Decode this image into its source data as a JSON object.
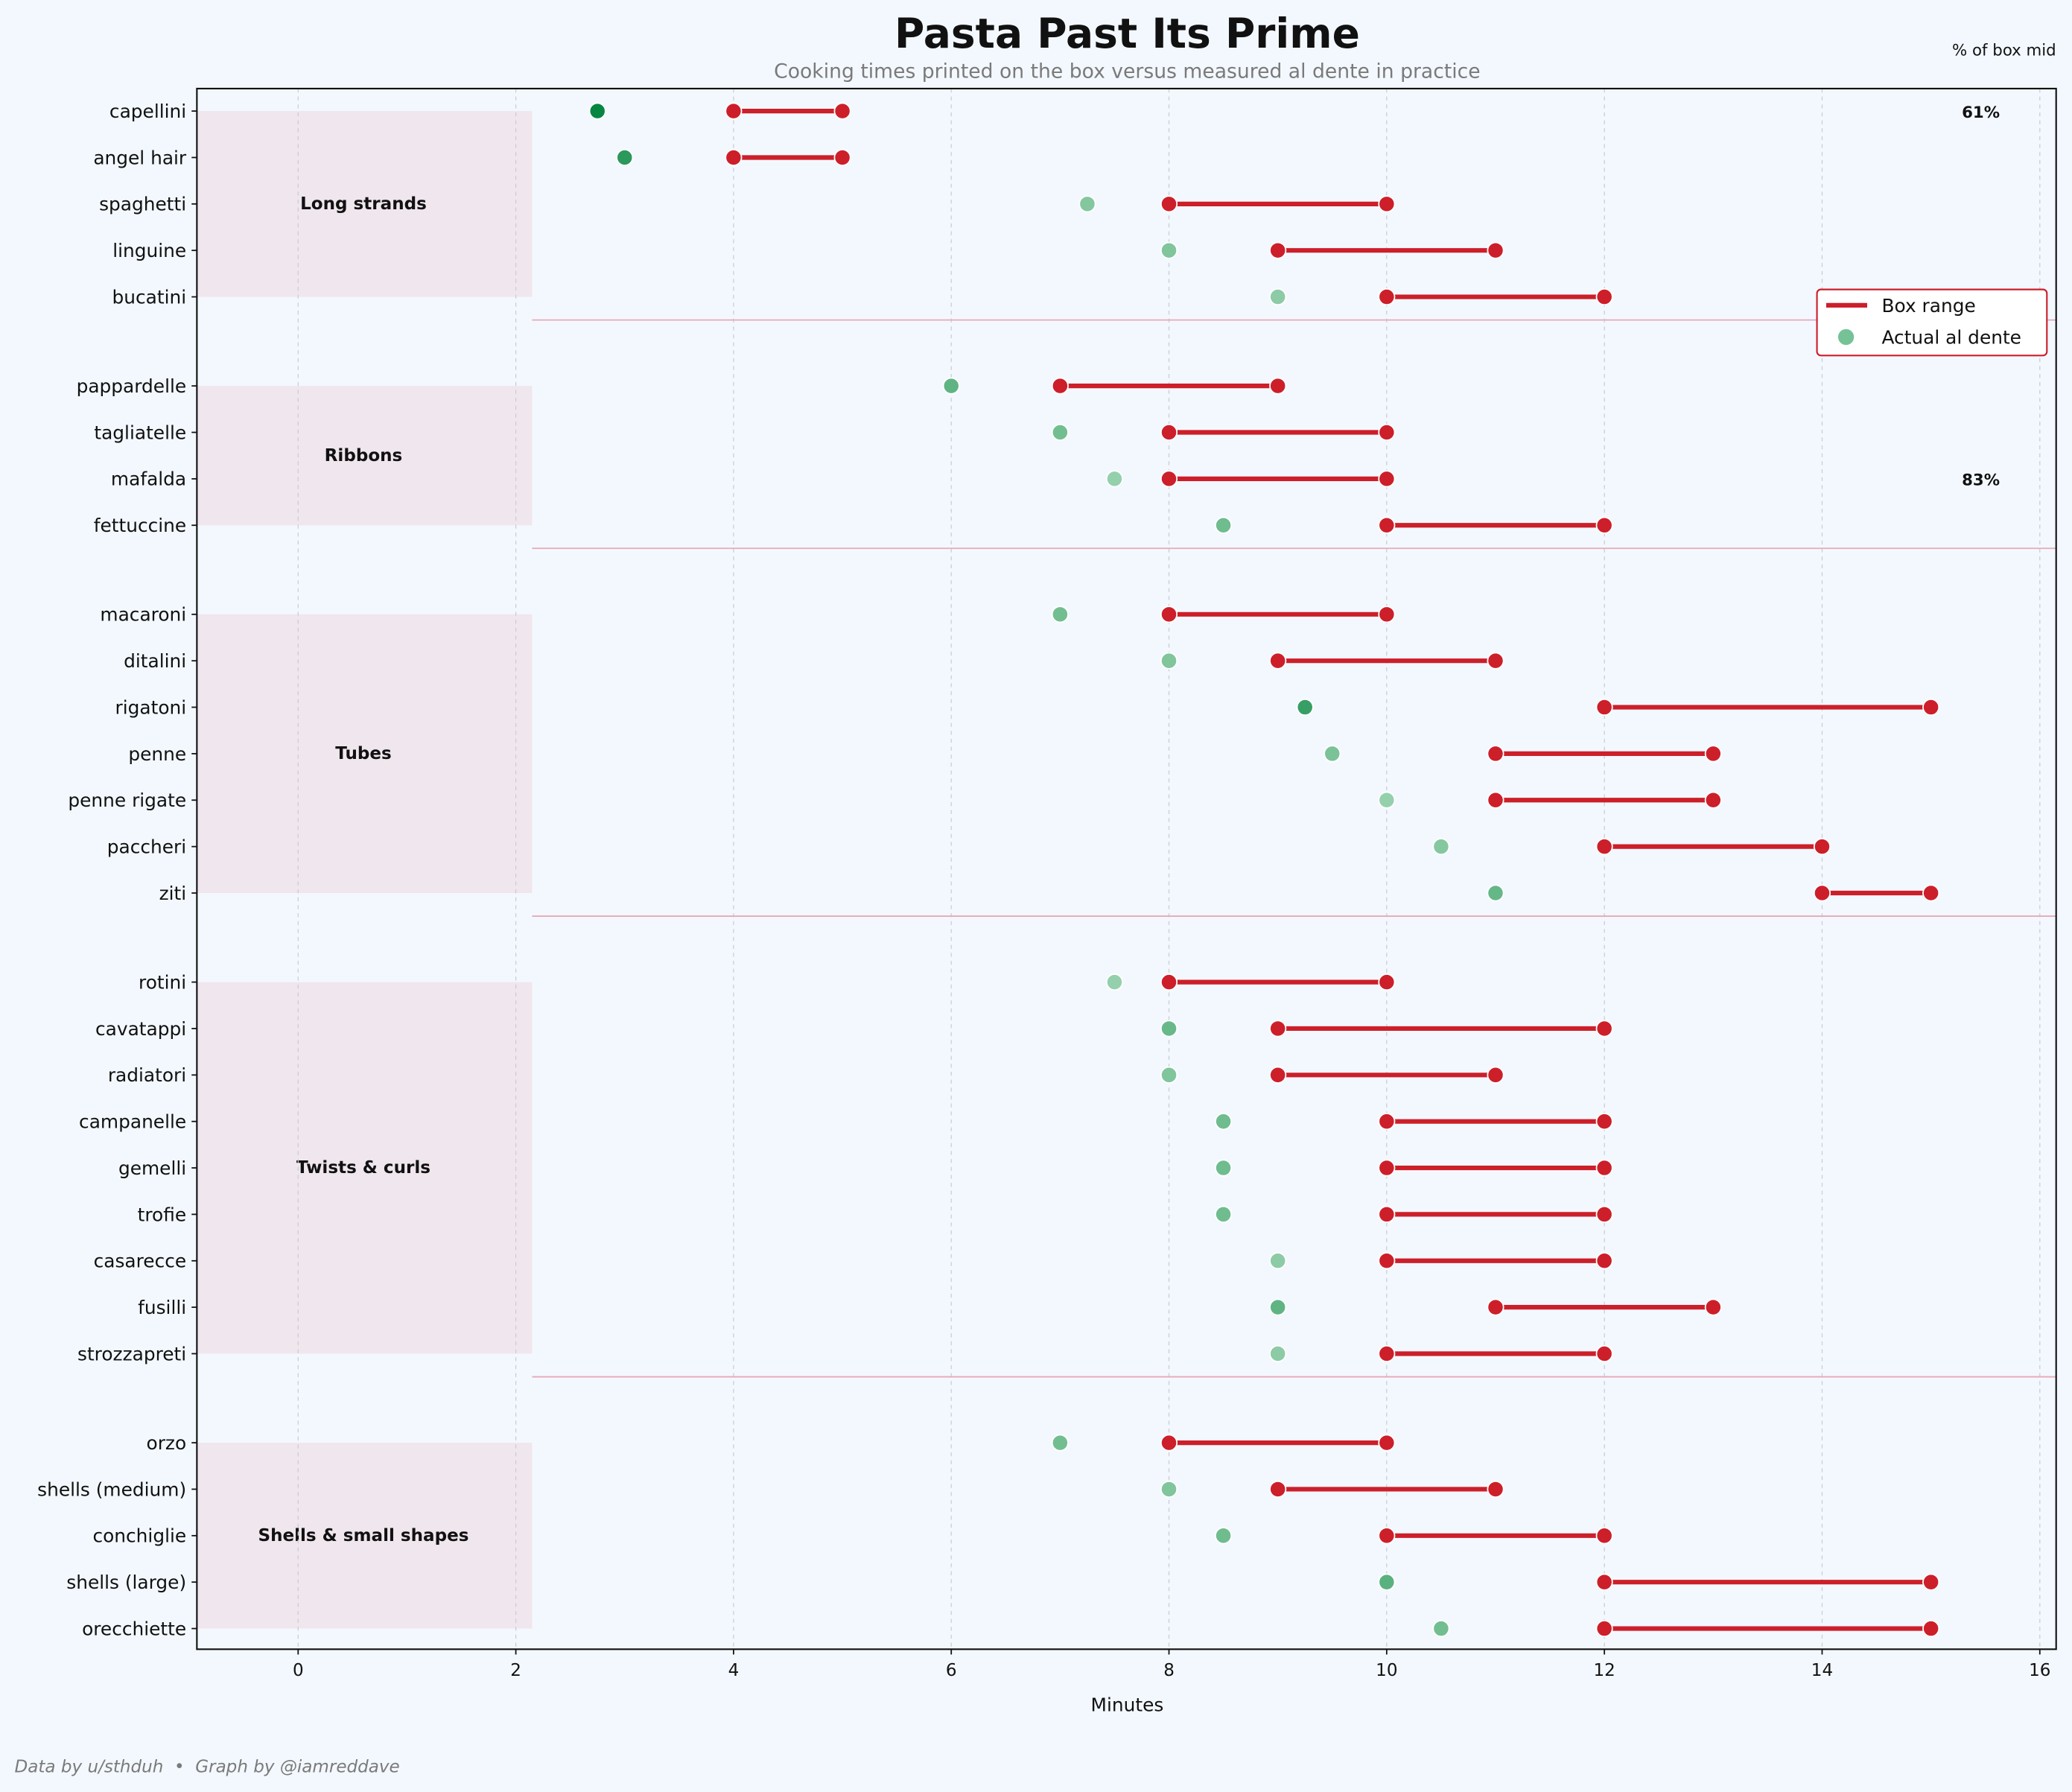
{
  "chart_data": {
    "type": "dumbbell",
    "title": "Pasta Past Its Prime",
    "subtitle": "Cooking times printed on the box versus measured al dente in practice",
    "xlabel": "Minutes",
    "xlim": [
      -0.93,
      16.15
    ],
    "xticks": [
      "0",
      "2",
      "4",
      "6",
      "8",
      "10",
      "12",
      "14",
      "16"
    ],
    "grid": "vertical dashed",
    "legend": {
      "placement": "right",
      "items": [
        "Box range",
        "Actual al dente"
      ]
    },
    "pct_header": "% of box mid",
    "colors": {
      "box": "#cc1f2a",
      "actual": "#74c295",
      "band": "#f0e6ee",
      "separator": "#e6a9b6",
      "background": "#f3f8fe"
    },
    "groups": [
      {
        "label": "Long strands",
        "items": [
          {
            "name": "capellini",
            "box": [
              4,
              5
            ],
            "actual": 2.75,
            "pct_label": "61%"
          },
          {
            "name": "angel hair",
            "box": [
              4,
              5
            ],
            "actual": 3
          },
          {
            "name": "spaghetti",
            "box": [
              8,
              10
            ],
            "actual": 7.25
          },
          {
            "name": "linguine",
            "box": [
              9,
              11
            ],
            "actual": 8
          },
          {
            "name": "bucatini",
            "box": [
              10,
              12
            ],
            "actual": 9
          }
        ]
      },
      {
        "label": "Ribbons",
        "items": [
          {
            "name": "pappardelle",
            "box": [
              7,
              9
            ],
            "actual": 6
          },
          {
            "name": "tagliatelle",
            "box": [
              8,
              10
            ],
            "actual": 7
          },
          {
            "name": "mafalda",
            "box": [
              8,
              10
            ],
            "actual": 7.5,
            "pct_label": "83%"
          },
          {
            "name": "fettuccine",
            "box": [
              10,
              12
            ],
            "actual": 8.5
          }
        ]
      },
      {
        "label": "Tubes",
        "items": [
          {
            "name": "macaroni",
            "box": [
              8,
              10
            ],
            "actual": 7
          },
          {
            "name": "ditalini",
            "box": [
              9,
              11
            ],
            "actual": 8
          },
          {
            "name": "rigatoni",
            "box": [
              12,
              15
            ],
            "actual": 9.25
          },
          {
            "name": "penne",
            "box": [
              11,
              13
            ],
            "actual": 9.5
          },
          {
            "name": "penne rigate",
            "box": [
              11,
              13
            ],
            "actual": 10
          },
          {
            "name": "paccheri",
            "box": [
              12,
              14
            ],
            "actual": 10.5
          },
          {
            "name": "ziti",
            "box": [
              14,
              15
            ],
            "actual": 11
          }
        ]
      },
      {
        "label": "Twists & curls",
        "items": [
          {
            "name": "rotini",
            "box": [
              8,
              10
            ],
            "actual": 7.5
          },
          {
            "name": "cavatappi",
            "box": [
              9,
              12
            ],
            "actual": 8
          },
          {
            "name": "radiatori",
            "box": [
              9,
              11
            ],
            "actual": 8
          },
          {
            "name": "campanelle",
            "box": [
              10,
              12
            ],
            "actual": 8.5
          },
          {
            "name": "gemelli",
            "box": [
              10,
              12
            ],
            "actual": 8.5
          },
          {
            "name": "trofie",
            "box": [
              10,
              12
            ],
            "actual": 8.5
          },
          {
            "name": "casarecce",
            "box": [
              10,
              12
            ],
            "actual": 9
          },
          {
            "name": "fusilli",
            "box": [
              11,
              13
            ],
            "actual": 9
          },
          {
            "name": "strozzapreti",
            "box": [
              10,
              12
            ],
            "actual": 9
          }
        ]
      },
      {
        "label": "Shells & small shapes",
        "items": [
          {
            "name": "orzo",
            "box": [
              8,
              10
            ],
            "actual": 7
          },
          {
            "name": "shells (medium)",
            "box": [
              9,
              11
            ],
            "actual": 8
          },
          {
            "name": "conchiglie",
            "box": [
              10,
              12
            ],
            "actual": 8.5
          },
          {
            "name": "shells (large)",
            "box": [
              12,
              15
            ],
            "actual": 10
          },
          {
            "name": "orecchiette",
            "box": [
              12,
              15
            ],
            "actual": 10.5
          }
        ]
      }
    ]
  },
  "footer": {
    "credit": "Data by u/sthduh  •  Graph by @iamreddave"
  }
}
